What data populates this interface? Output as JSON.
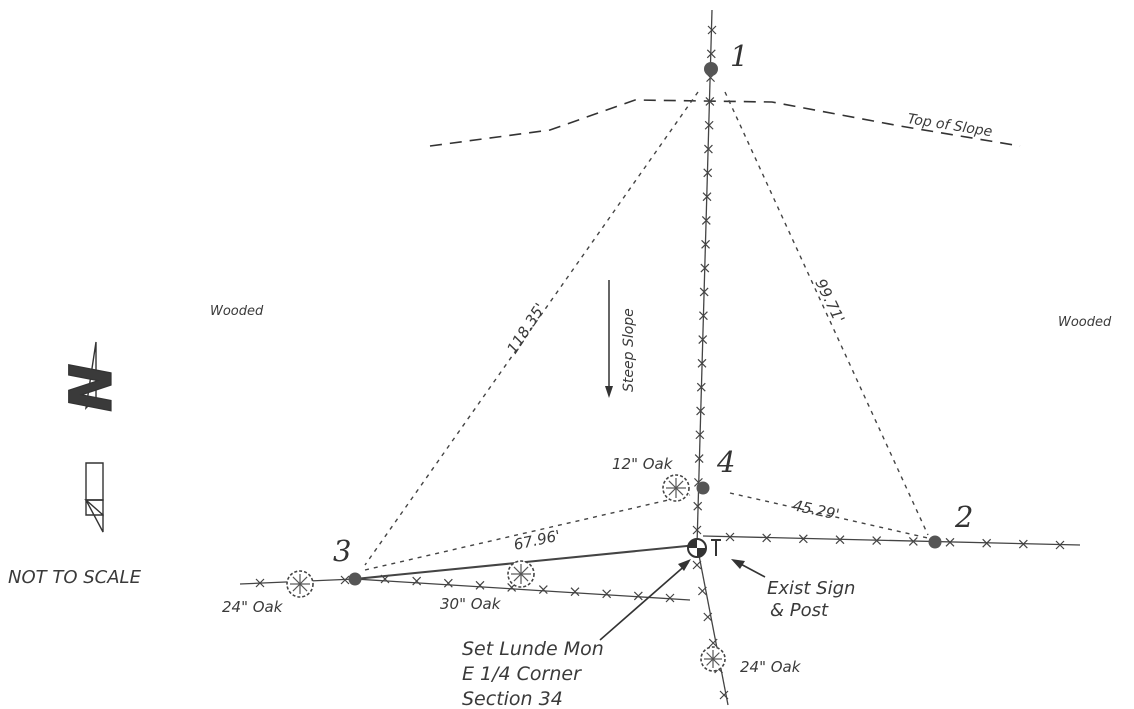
{
  "points": [
    {
      "label": "1"
    },
    {
      "label": "2"
    },
    {
      "label": "3"
    },
    {
      "label": "4"
    }
  ],
  "distances": {
    "d_1_3": "118.35'",
    "d_1_2": "99.71'",
    "d_3_mon": "67.96'",
    "d_4_2": "45.29'"
  },
  "labels": {
    "top_of_slope": "Top of Slope",
    "steep_slope": "Steep Slope",
    "wooded_left": "Wooded",
    "wooded_right": "Wooded",
    "not_to_scale": "NOT TO SCALE",
    "exist_sign_line1": "Exist Sign",
    "exist_sign_line2": "& Post",
    "monument_line1": "Set Lunde Mon",
    "monument_line2": "E 1/4 Corner",
    "monument_line3": "Section 34"
  },
  "trees": [
    {
      "label": "12\" Oak"
    },
    {
      "label": "24\" Oak"
    },
    {
      "label": "30\" Oak"
    },
    {
      "label": "24\" Oak"
    }
  ],
  "north_arrow": {
    "letter": "N"
  }
}
